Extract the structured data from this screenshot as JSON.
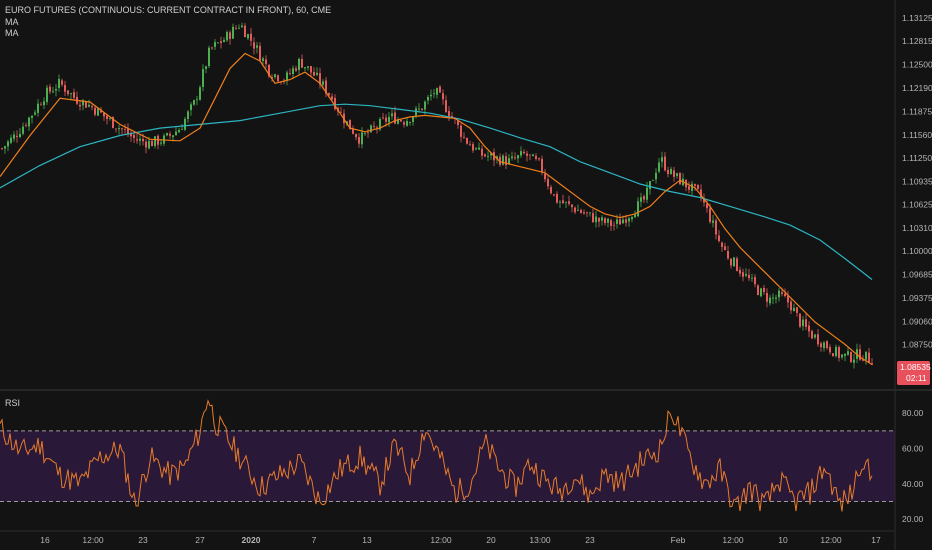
{
  "header": {
    "title": "EURO FUTURES (CONTINUOUS: CURRENT CONTRACT IN FRONT), 60, CME",
    "ma1_label": "MA",
    "ma2_label": "MA",
    "rsi_label": "RSI"
  },
  "price_badge": {
    "value": "1.08535",
    "countdown": "02:11",
    "color": "#e8505b"
  },
  "colors": {
    "background": "#131313",
    "up_candle": "#4caf50",
    "down_candle": "#e25c5c",
    "ma_fast": "#ef7f1a",
    "ma_slow": "#2bb5c2",
    "rsi_line": "#e77b2a",
    "rsi_band": "#2a1838",
    "band_line": "#9a9a9a"
  },
  "chart_data": [
    {
      "type": "candlestick",
      "title": "EURO FUTURES (CONTINUOUS: CURRENT CONTRACT IN FRONT), 60, CME",
      "y_ticks": [
        "1.13125",
        "1.12815",
        "1.12500",
        "1.12190",
        "1.11875",
        "1.11560",
        "1.11250",
        "1.10935",
        "1.10625",
        "1.10310",
        "1.10000",
        "1.09685",
        "1.09375",
        "1.09060",
        "1.08750"
      ],
      "ylim": [
        1.0838,
        1.1326
      ],
      "x_ticks": [
        "16",
        "12:00",
        "23",
        "27",
        "2020",
        "7",
        "13",
        "12:00",
        "20",
        "13:00",
        "23",
        "Feb",
        "12:00",
        "10",
        "12:00",
        "17"
      ],
      "close_path": {
        "x": [
          0,
          15,
          30,
          45,
          60,
          75,
          90,
          105,
          120,
          135,
          150,
          165,
          180,
          195,
          210,
          225,
          240,
          255,
          270,
          285,
          300,
          315,
          330,
          345,
          360,
          375,
          390,
          405,
          420,
          435,
          450,
          465,
          480,
          495,
          510,
          525,
          540,
          555,
          570,
          585,
          600,
          615,
          630,
          645,
          660,
          670,
          680,
          690,
          700,
          710,
          720,
          730,
          740,
          750,
          760,
          770,
          780,
          790,
          800,
          810,
          820,
          830,
          840,
          850,
          860,
          870
        ],
        "y": [
          1.1135,
          1.1155,
          1.118,
          1.121,
          1.1225,
          1.1205,
          1.1195,
          1.118,
          1.1165,
          1.115,
          1.1145,
          1.115,
          1.1165,
          1.12,
          1.127,
          1.1285,
          1.1305,
          1.1275,
          1.124,
          1.123,
          1.1255,
          1.1235,
          1.121,
          1.1175,
          1.115,
          1.1165,
          1.118,
          1.1175,
          1.119,
          1.1215,
          1.1185,
          1.115,
          1.113,
          1.1125,
          1.112,
          1.113,
          1.1115,
          1.107,
          1.106,
          1.105,
          1.104,
          1.1035,
          1.105,
          1.107,
          1.1125,
          1.1105,
          1.1095,
          1.1085,
          1.1075,
          1.1045,
          1.101,
          1.099,
          1.0975,
          1.096,
          1.0945,
          1.0935,
          1.094,
          1.093,
          1.0905,
          1.089,
          1.088,
          1.087,
          1.086,
          1.0858,
          1.0862,
          1.0855
        ]
      },
      "ma_fast": {
        "x": [
          0,
          30,
          60,
          90,
          120,
          150,
          180,
          200,
          215,
          230,
          245,
          260,
          275,
          290,
          305,
          320,
          335,
          350,
          365,
          380,
          395,
          410,
          425,
          440,
          455,
          470,
          485,
          500,
          515,
          530,
          545,
          560,
          575,
          590,
          605,
          620,
          635,
          650,
          665,
          680,
          695,
          710,
          725,
          740,
          755,
          770,
          785,
          800,
          815,
          830,
          845,
          860,
          872
        ],
        "y": [
          1.11,
          1.1155,
          1.1205,
          1.12,
          1.117,
          1.115,
          1.1148,
          1.1165,
          1.1205,
          1.1245,
          1.1265,
          1.1255,
          1.1225,
          1.123,
          1.124,
          1.1225,
          1.1195,
          1.1165,
          1.116,
          1.1165,
          1.1175,
          1.118,
          1.1182,
          1.118,
          1.1178,
          1.1165,
          1.114,
          1.112,
          1.1115,
          1.111,
          1.1105,
          1.109,
          1.1075,
          1.106,
          1.105,
          1.1045,
          1.105,
          1.106,
          1.108,
          1.1095,
          1.1085,
          1.106,
          1.103,
          1.1005,
          1.0985,
          1.0965,
          1.0945,
          1.0925,
          1.0905,
          1.089,
          1.0875,
          1.0858,
          1.0848
        ]
      },
      "ma_slow": {
        "x": [
          0,
          40,
          80,
          120,
          160,
          200,
          240,
          280,
          320,
          345,
          370,
          400,
          430,
          460,
          490,
          520,
          550,
          580,
          610,
          640,
          670,
          700,
          730,
          760,
          790,
          820,
          845,
          872
        ],
        "y": [
          1.1085,
          1.1115,
          1.114,
          1.1155,
          1.1165,
          1.117,
          1.1175,
          1.1185,
          1.1195,
          1.1197,
          1.1195,
          1.119,
          1.1185,
          1.1177,
          1.1165,
          1.1152,
          1.114,
          1.112,
          1.1105,
          1.109,
          1.108,
          1.1072,
          1.106,
          1.1048,
          1.1035,
          1.1015,
          1.099,
          1.0962
        ]
      }
    },
    {
      "type": "line",
      "title": "RSI",
      "y_ticks": [
        "80.00",
        "60.00",
        "40.00",
        "20.00"
      ],
      "ylim": [
        15,
        92
      ],
      "bands": [
        30,
        70
      ],
      "x": [
        0,
        20,
        40,
        60,
        80,
        100,
        120,
        135,
        150,
        170,
        185,
        200,
        208,
        215,
        225,
        240,
        260,
        280,
        300,
        320,
        340,
        360,
        380,
        395,
        410,
        425,
        440,
        455,
        470,
        485,
        500,
        515,
        530,
        545,
        560,
        575,
        590,
        605,
        620,
        640,
        660,
        672,
        680,
        690,
        705,
        720,
        735,
        750,
        765,
        780,
        795,
        810,
        825,
        840,
        852,
        862,
        872
      ],
      "values": [
        72,
        58,
        62,
        45,
        40,
        55,
        60,
        28,
        55,
        45,
        50,
        70,
        90,
        75,
        68,
        55,
        38,
        45,
        52,
        30,
        48,
        55,
        40,
        62,
        45,
        72,
        55,
        35,
        40,
        63,
        48,
        38,
        52,
        42,
        36,
        45,
        33,
        46,
        40,
        52,
        60,
        82,
        70,
        55,
        40,
        48,
        26,
        38,
        28,
        42,
        30,
        35,
        50,
        28,
        35,
        55,
        42
      ]
    }
  ]
}
